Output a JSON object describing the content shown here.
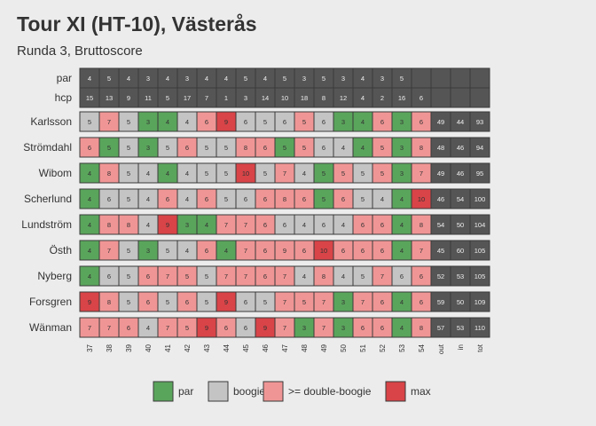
{
  "title": "Tour XI (HT-10), Västerås",
  "subtitle": "Runda 3, Bruttoscore",
  "chart_data": {
    "type": "heatmap",
    "columns": [
      "37",
      "38",
      "39",
      "40",
      "41",
      "42",
      "43",
      "44",
      "45",
      "46",
      "47",
      "48",
      "49",
      "50",
      "51",
      "52",
      "53",
      "54",
      "out",
      "in",
      "tot"
    ],
    "info_rows": [
      {
        "label": "par",
        "values": [
          "4",
          "5",
          "4",
          "3",
          "4",
          "3",
          "4",
          "4",
          "5",
          "4",
          "5",
          "3",
          "5",
          "3",
          "4",
          "3",
          "5",
          ""
        ]
      },
      {
        "label": "hcp",
        "values": [
          "15",
          "13",
          "9",
          "11",
          "5",
          "17",
          "7",
          "1",
          "3",
          "14",
          "10",
          "18",
          "8",
          "12",
          "4",
          "2",
          "16",
          "6"
        ]
      }
    ],
    "players": [
      {
        "name": "Karlsson",
        "scores": [
          5,
          7,
          5,
          3,
          4,
          4,
          6,
          9,
          6,
          5,
          6,
          5,
          6,
          3,
          4,
          6,
          3,
          6
        ],
        "out": 49,
        "in": 44,
        "tot": 93
      },
      {
        "name": "Strömdahl",
        "scores": [
          6,
          5,
          5,
          3,
          5,
          6,
          5,
          5,
          8,
          6,
          5,
          5,
          6,
          4,
          4,
          5,
          3,
          8
        ],
        "out": 48,
        "in": 46,
        "tot": 94
      },
      {
        "name": "Wibom",
        "scores": [
          4,
          8,
          5,
          4,
          4,
          4,
          5,
          5,
          10,
          5,
          7,
          4,
          5,
          5,
          5,
          5,
          3,
          7
        ],
        "out": 49,
        "in": 46,
        "tot": 95
      },
      {
        "name": "Scherlund",
        "scores": [
          4,
          6,
          5,
          4,
          6,
          4,
          6,
          5,
          6,
          6,
          8,
          6,
          5,
          6,
          5,
          4,
          4,
          10
        ],
        "out": 46,
        "in": 54,
        "tot": 100
      },
      {
        "name": "Lundström",
        "scores": [
          4,
          8,
          8,
          4,
          9,
          3,
          4,
          7,
          7,
          6,
          6,
          4,
          6,
          4,
          6,
          6,
          4,
          8
        ],
        "out": 54,
        "in": 50,
        "tot": 104
      },
      {
        "name": "Östh",
        "scores": [
          4,
          7,
          5,
          3,
          5,
          4,
          6,
          4,
          7,
          6,
          9,
          6,
          10,
          6,
          6,
          6,
          4,
          7
        ],
        "out": 45,
        "in": 60,
        "tot": 105
      },
      {
        "name": "Nyberg",
        "scores": [
          4,
          6,
          5,
          6,
          7,
          5,
          5,
          7,
          7,
          6,
          7,
          4,
          8,
          4,
          5,
          7,
          6,
          6
        ],
        "out": 52,
        "in": 53,
        "tot": 105
      },
      {
        "name": "Forsgren",
        "scores": [
          9,
          8,
          5,
          6,
          5,
          6,
          5,
          9,
          6,
          5,
          7,
          5,
          7,
          3,
          7,
          6,
          4,
          6
        ],
        "out": 59,
        "in": 50,
        "tot": 109
      },
      {
        "name": "Wänman",
        "scores": [
          7,
          7,
          6,
          4,
          7,
          5,
          9,
          6,
          6,
          9,
          7,
          3,
          7,
          3,
          6,
          6,
          4,
          8
        ],
        "out": 57,
        "in": 53,
        "tot": 110
      }
    ],
    "categories": [
      {
        "key": "par",
        "label": "par",
        "color": "#5aa55c"
      },
      {
        "key": "boogie",
        "label": "boogie",
        "color": "#c4c4c4"
      },
      {
        "key": "double",
        "label": ">= double-boogie",
        "color": "#f09595"
      },
      {
        "key": "max",
        "label": "max",
        "color": "#d84448"
      }
    ],
    "colors": {
      "info_row": "#555555",
      "info_text": "#eeeeee",
      "total_cell": "#555555",
      "total_text": "#eeeeee",
      "cell_text": "#333333",
      "background": "#ececec"
    }
  }
}
